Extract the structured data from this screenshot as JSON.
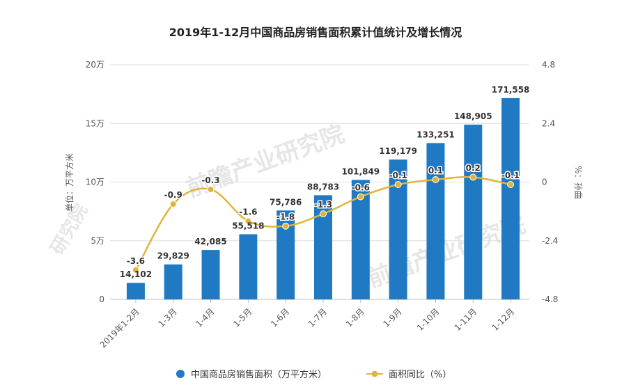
{
  "chart_data": {
    "type": "bar+line",
    "title": "2019年1-12月中国商品房销售面积累计值统计及增长情况",
    "categories": [
      "2019年1-2月",
      "1-3月",
      "1-4月",
      "1-5月",
      "1-6月",
      "1-7月",
      "1-8月",
      "1-9月",
      "1-10月",
      "1-11月",
      "1-12月"
    ],
    "series": [
      {
        "name": "中国商品房销售面积（万平方米）",
        "type": "bar",
        "axis": "left",
        "color": "#1f7ac3",
        "values": [
          14102,
          29829,
          42085,
          55518,
          75786,
          88783,
          101849,
          119179,
          133251,
          148905,
          171558
        ],
        "labels": [
          "14,102",
          "29,829",
          "42,085",
          "55,518",
          "75,786",
          "88,783",
          "101,849",
          "119,179",
          "133,251",
          "148,905",
          "171,558"
        ]
      },
      {
        "name": "面积同比（%）",
        "type": "line",
        "axis": "right",
        "color": "#e0b43a",
        "values": [
          -3.6,
          -0.9,
          -0.3,
          -1.6,
          -1.8,
          -1.3,
          -0.6,
          -0.1,
          0.1,
          0.2,
          -0.1
        ],
        "labels": [
          "-3.6",
          "-0.9",
          "-0.3",
          "-1.6",
          "-1.8",
          "-1.3",
          "-0.6",
          "-0.1",
          "0.1",
          "0.2",
          "-0.1"
        ]
      }
    ],
    "y_left": {
      "label": "单位：万平方米",
      "ylim": [
        0,
        200000
      ],
      "ticks": [
        0,
        50000,
        100000,
        150000,
        200000
      ],
      "tick_labels": [
        "0",
        "5万",
        "10万",
        "15万",
        "20万"
      ]
    },
    "y_right": {
      "label": "%：孙曲",
      "ylim": [
        -4.8,
        4.8
      ],
      "ticks": [
        -4.8,
        -2.4,
        0,
        2.4,
        4.8
      ],
      "tick_labels": [
        "-4.8",
        "-2.4",
        "0",
        "2.4",
        "4.8"
      ]
    },
    "grid": "horizontal",
    "legend": {
      "position": "bottom-center",
      "items": [
        "中国商品房销售面积（万平方米）",
        "面积同比（%）"
      ]
    }
  },
  "watermark": {
    "text": "前瞻产业研究院",
    "short": "研究院"
  }
}
